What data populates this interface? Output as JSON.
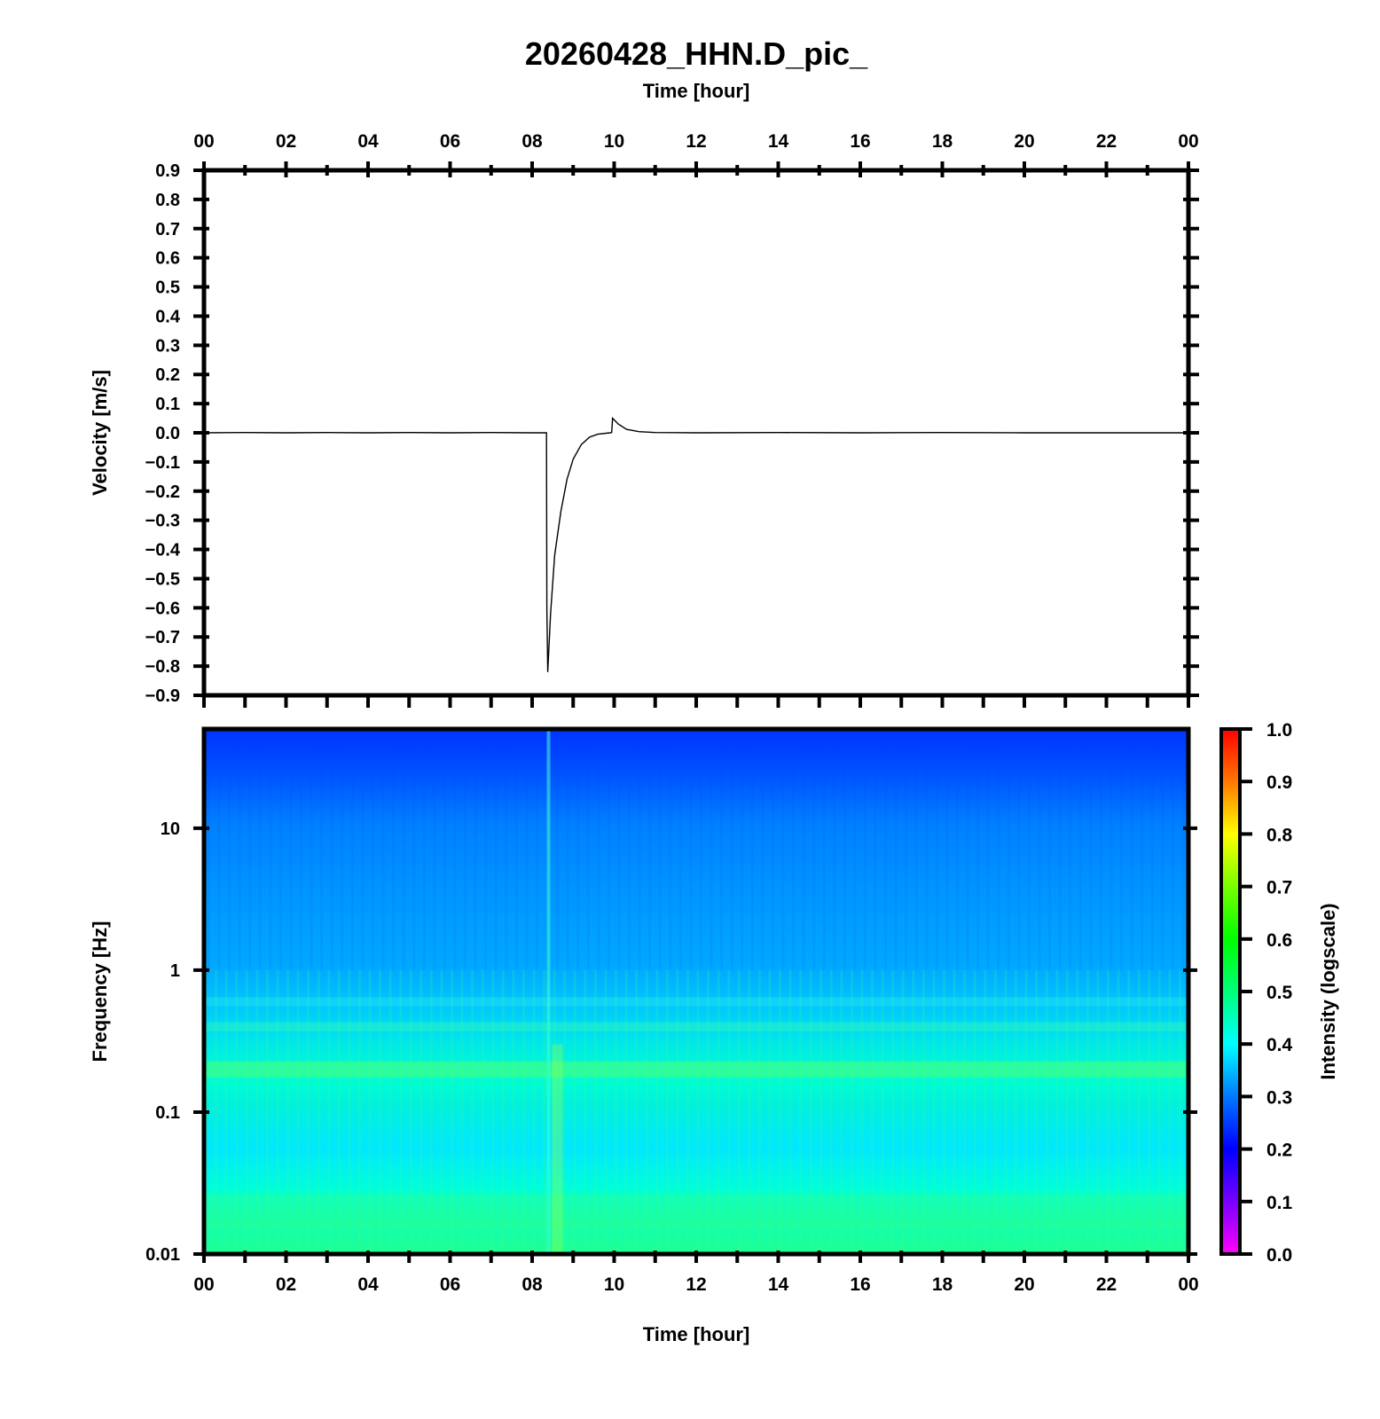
{
  "title": "20260428_HHN.D_pic_",
  "chart_data": [
    {
      "type": "line",
      "xlabel": "Time [hour]",
      "ylabel": "Velocity [m/s]",
      "x_axis_position": "top",
      "xlim": [
        0,
        24
      ],
      "ylim": [
        -0.9,
        0.9
      ],
      "xtick_labels": [
        "00",
        "02",
        "04",
        "06",
        "08",
        "10",
        "12",
        "14",
        "16",
        "18",
        "20",
        "22",
        "00"
      ],
      "ytick_labels": [
        "0.9",
        "0.8",
        "0.7",
        "0.6",
        "0.5",
        "0.4",
        "0.3",
        "0.2",
        "0.1",
        "0.0",
        "−0.1",
        "−0.2",
        "−0.3",
        "−0.4",
        "−0.5",
        "−0.6",
        "−0.7",
        "−0.8",
        "−0.9"
      ],
      "grid": false,
      "series": [
        {
          "color": "#000000",
          "x": [
            0,
            1,
            2,
            3,
            4,
            5,
            6,
            7,
            8,
            8.35,
            8.36,
            8.38,
            8.45,
            8.55,
            8.7,
            8.85,
            9.0,
            9.2,
            9.4,
            9.6,
            9.9,
            9.94,
            9.96,
            10.1,
            10.3,
            10.6,
            11,
            12,
            14,
            16,
            18,
            20,
            22,
            24
          ],
          "y": [
            0,
            0.001,
            0,
            0.001,
            0,
            0.001,
            0,
            0.001,
            0,
            0,
            -0.6,
            -0.82,
            -0.62,
            -0.42,
            -0.27,
            -0.16,
            -0.09,
            -0.04,
            -0.015,
            -0.005,
            0,
            0.001,
            0.05,
            0.03,
            0.012,
            0.004,
            0.001,
            0,
            0.001,
            0,
            0.001,
            0,
            0,
            0
          ]
        }
      ]
    },
    {
      "type": "heatmap",
      "xlabel": "Time [hour]",
      "ylabel": "Frequency [Hz]",
      "xlim": [
        0,
        24
      ],
      "ylim": [
        0.01,
        50
      ],
      "yscale": "log",
      "xtick_labels": [
        "00",
        "02",
        "04",
        "06",
        "08",
        "10",
        "12",
        "14",
        "16",
        "18",
        "20",
        "22",
        "00"
      ],
      "ytick_labels": [
        "10",
        "1",
        "0.1",
        "0.01"
      ],
      "ytick_values": [
        10,
        1,
        0.1,
        0.01
      ],
      "colorbar": {
        "label": "Intensity (logscale)",
        "range": [
          0,
          1
        ],
        "tick_labels": [
          "1.0",
          "0.9",
          "0.8",
          "0.7",
          "0.6",
          "0.5",
          "0.4",
          "0.3",
          "0.2",
          "0.1",
          "0.0"
        ],
        "colors": [
          "#ff00ff",
          "#7800ff",
          "#0000ff",
          "#0078ff",
          "#00ffff",
          "#00ff78",
          "#00ff00",
          "#78ff00",
          "#ffff00",
          "#ff7800",
          "#ff0000"
        ]
      },
      "intensity_profile": {
        "frequency": [
          50,
          40,
          20,
          10,
          3,
          1,
          0.6,
          0.4,
          0.2,
          0.1,
          0.05,
          0.02,
          0.01
        ],
        "intensity": [
          0.23,
          0.27,
          0.31,
          0.34,
          0.35,
          0.37,
          0.42,
          0.45,
          0.49,
          0.44,
          0.47,
          0.5,
          0.52
        ]
      },
      "event_time_hour": 8.4
    }
  ]
}
